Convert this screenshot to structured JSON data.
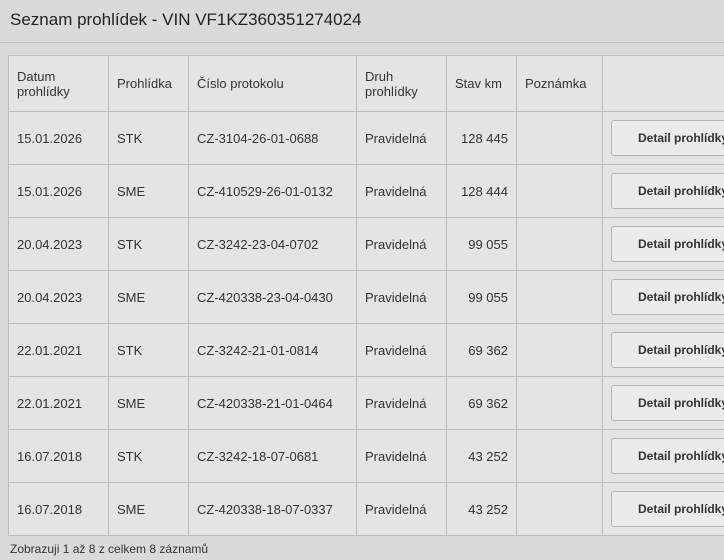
{
  "header": {
    "title": "Seznam prohlídek - VIN VF1KZ360351274024"
  },
  "table": {
    "columns": [
      "Datum prohlídky",
      "Prohlídka",
      "Číslo protokolu",
      "Druh prohlídky",
      "Stav km",
      "Poznámka"
    ],
    "rows": [
      [
        "15.01.2026",
        "STK",
        "CZ-3104-26-01-0688",
        "Pravidelná",
        "128 445",
        "",
        "Detail prohlídky"
      ],
      [
        "15.01.2026",
        "SME",
        "CZ-410529-26-01-0132",
        "Pravidelná",
        "128 444",
        "",
        "Detail prohlídky"
      ],
      [
        "20.04.2023",
        "STK",
        "CZ-3242-23-04-0702",
        "Pravidelná",
        "99 055",
        "",
        "Detail prohlídky"
      ],
      [
        "20.04.2023",
        "SME",
        "CZ-420338-23-04-0430",
        "Pravidelná",
        "99 055",
        "",
        "Detail prohlídky"
      ],
      [
        "22.01.2021",
        "STK",
        "CZ-3242-21-01-0814",
        "Pravidelná",
        "69 362",
        "",
        "Detail prohlídky"
      ],
      [
        "22.01.2021",
        "SME",
        "CZ-420338-21-01-0464",
        "Pravidelná",
        "69 362",
        "",
        "Detail prohlídky"
      ],
      [
        "16.07.2018",
        "STK",
        "CZ-3242-18-07-0681",
        "Pravidelná",
        "43 252",
        "",
        "Detail prohlídky"
      ],
      [
        "16.07.2018",
        "SME",
        "CZ-420338-18-07-0337",
        "Pravidelná",
        "43 252",
        "",
        "Detail prohlídky"
      ]
    ]
  },
  "footer": {
    "summary": "Zobrazuji 1 až 8 z celkem 8 záznamů"
  }
}
